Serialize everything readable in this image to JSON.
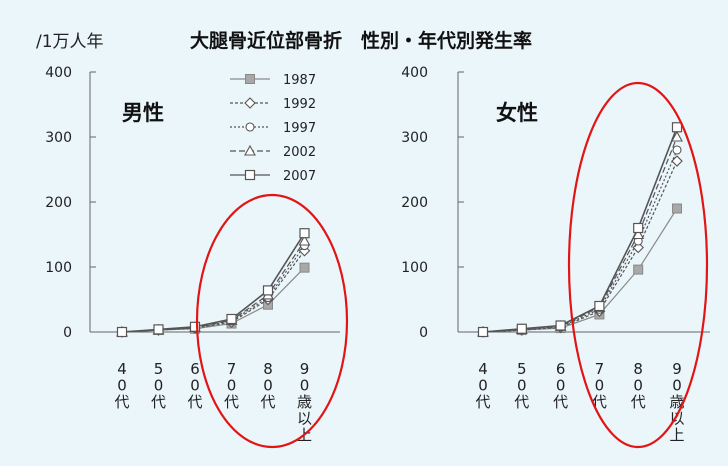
{
  "header": {
    "unit": "/1万人年",
    "title": "大腿骨近位部骨折　性別・年代別発生率"
  },
  "chart_data": {
    "type": "line",
    "title": "大腿骨近位部骨折　性別・年代別発生率",
    "ylabel": "/1万人年",
    "ylim": [
      0,
      400
    ],
    "yticks": [
      "0",
      "100",
      "200",
      "300",
      "400"
    ],
    "categories": [
      "40代",
      "50代",
      "60代",
      "70代",
      "80代",
      "90歳以上"
    ],
    "legend_position": "top-right of left panel",
    "highlight": "red ellipse around 70代–90歳以上",
    "panels": [
      {
        "label": "男性",
        "series": [
          {
            "name": "1987",
            "values": [
              0,
              3,
              5,
              13,
              42,
              99
            ]
          },
          {
            "name": "1992",
            "values": [
              0,
              3,
              6,
              15,
              50,
              125
            ]
          },
          {
            "name": "1997",
            "values": [
              0,
              3,
              6,
              17,
              53,
              133
            ]
          },
          {
            "name": "2002",
            "values": [
              0,
              3,
              7,
              18,
              57,
              140
            ]
          },
          {
            "name": "2007",
            "values": [
              0,
              4,
              8,
              20,
              64,
              152
            ]
          }
        ]
      },
      {
        "label": "女性",
        "series": [
          {
            "name": "1987",
            "values": [
              0,
              3,
              6,
              27,
              96,
              190
            ]
          },
          {
            "name": "1992",
            "values": [
              0,
              3,
              7,
              32,
              130,
              263
            ]
          },
          {
            "name": "1997",
            "values": [
              0,
              4,
              8,
              35,
              140,
              280
            ]
          },
          {
            "name": "2002",
            "values": [
              0,
              4,
              9,
              38,
              150,
              300
            ]
          },
          {
            "name": "2007",
            "values": [
              0,
              5,
              10,
              40,
              160,
              315
            ]
          }
        ]
      }
    ]
  }
}
